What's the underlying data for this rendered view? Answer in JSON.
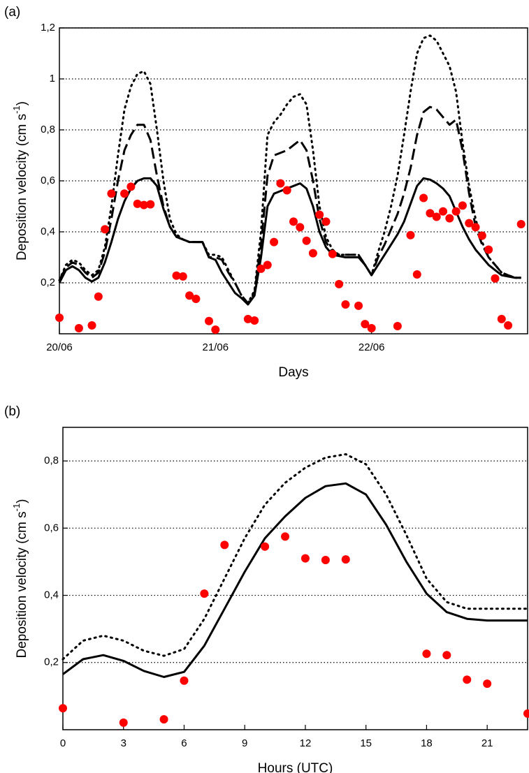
{
  "chart_data": [
    {
      "type": "line",
      "label": "(a)",
      "xlabel": "Days",
      "ylabel": [
        "Deposition velocity (cm s",
        "-1",
        ")"
      ],
      "x": [
        0,
        1,
        2,
        3,
        4,
        5,
        6,
        7,
        8,
        9,
        10,
        11,
        12,
        13,
        14,
        15,
        16,
        17,
        18,
        19,
        20,
        21,
        22,
        23,
        24,
        25,
        26,
        27,
        28,
        29,
        30,
        31,
        32,
        33,
        34,
        35,
        36,
        37,
        38,
        39,
        40,
        41,
        42,
        43,
        44,
        45,
        46,
        47,
        48,
        49,
        50,
        51,
        52,
        53,
        54,
        55,
        56,
        57,
        58,
        59,
        60,
        61,
        62,
        63,
        64,
        65,
        66,
        67,
        68,
        69,
        70,
        71
      ],
      "xlim": [
        0,
        72
      ],
      "xticks": [
        {
          "value": 0,
          "label": "20/06"
        },
        {
          "value": 24,
          "label": "21/06"
        },
        {
          "value": 48,
          "label": "22/06"
        }
      ],
      "ylim": [
        0,
        1.2
      ],
      "yticks": [
        {
          "value": 0.2,
          "label": "0,2"
        },
        {
          "value": 0.4,
          "label": "0,4"
        },
        {
          "value": 0.6,
          "label": "0,6"
        },
        {
          "value": 0.8,
          "label": "0,8"
        },
        1,
        {
          "value": 1.2,
          "label": "1,2"
        }
      ],
      "grid": true,
      "series": [
        {
          "style": "dotted",
          "color": "#000000",
          "values": [
            0.21,
            0.27,
            0.29,
            0.28,
            0.25,
            0.23,
            0.25,
            0.34,
            0.5,
            0.7,
            0.88,
            0.97,
            1.02,
            1.03,
            0.98,
            0.8,
            0.6,
            0.45,
            0.39,
            0.37,
            0.36,
            0.36,
            0.36,
            0.31,
            0.31,
            0.3,
            0.25,
            0.2,
            0.15,
            0.12,
            0.17,
            0.4,
            0.78,
            0.83,
            0.86,
            0.9,
            0.93,
            0.94,
            0.9,
            0.72,
            0.5,
            0.38,
            0.33,
            0.31,
            0.31,
            0.31,
            0.31,
            0.27,
            0.23,
            0.32,
            0.4,
            0.5,
            0.62,
            0.78,
            0.95,
            1.1,
            1.16,
            1.17,
            1.15,
            1.1,
            1.05,
            0.95,
            0.75,
            0.58,
            0.45,
            0.36,
            0.3,
            0.27,
            0.24,
            0.23,
            0.22,
            0.22
          ]
        },
        {
          "style": "dashed",
          "color": "#000000",
          "values": [
            0.21,
            0.26,
            0.28,
            0.27,
            0.24,
            0.22,
            0.24,
            0.32,
            0.45,
            0.6,
            0.72,
            0.78,
            0.82,
            0.82,
            0.76,
            0.62,
            0.5,
            0.42,
            0.38,
            0.37,
            0.36,
            0.36,
            0.36,
            0.3,
            0.3,
            0.29,
            0.24,
            0.2,
            0.15,
            0.12,
            0.16,
            0.35,
            0.62,
            0.7,
            0.71,
            0.72,
            0.74,
            0.76,
            0.72,
            0.6,
            0.45,
            0.36,
            0.32,
            0.31,
            0.31,
            0.31,
            0.31,
            0.27,
            0.23,
            0.3,
            0.35,
            0.41,
            0.47,
            0.55,
            0.65,
            0.78,
            0.87,
            0.89,
            0.88,
            0.85,
            0.82,
            0.84,
            0.72,
            0.55,
            0.42,
            0.35,
            0.3,
            0.27,
            0.24,
            0.23,
            0.22,
            0.22
          ]
        },
        {
          "style": "solid",
          "color": "#000000",
          "values": [
            0.2,
            0.25,
            0.265,
            0.25,
            0.22,
            0.205,
            0.22,
            0.28,
            0.36,
            0.45,
            0.52,
            0.57,
            0.6,
            0.61,
            0.61,
            0.58,
            0.49,
            0.42,
            0.38,
            0.37,
            0.36,
            0.36,
            0.36,
            0.3,
            0.29,
            0.24,
            0.2,
            0.16,
            0.14,
            0.115,
            0.15,
            0.3,
            0.5,
            0.55,
            0.56,
            0.57,
            0.58,
            0.59,
            0.57,
            0.5,
            0.4,
            0.34,
            0.31,
            0.305,
            0.3,
            0.3,
            0.3,
            0.27,
            0.23,
            0.27,
            0.31,
            0.35,
            0.39,
            0.44,
            0.51,
            0.58,
            0.61,
            0.605,
            0.59,
            0.57,
            0.54,
            0.48,
            0.42,
            0.37,
            0.33,
            0.3,
            0.27,
            0.25,
            0.23,
            0.225,
            0.22,
            0.22
          ]
        },
        {
          "style": "dots",
          "color": "#ff0000",
          "values": [
            0.063,
            null,
            null,
            0.022,
            null,
            0.033,
            0.146,
            0.41,
            0.55,
            null,
            0.55,
            0.577,
            0.51,
            0.505,
            0.508,
            null,
            null,
            null,
            0.228,
            0.225,
            0.15,
            0.137,
            null,
            0.05,
            0.016,
            null,
            null,
            null,
            null,
            0.058,
            0.052,
            0.255,
            0.27,
            0.36,
            0.59,
            0.563,
            0.44,
            0.418,
            0.365,
            0.316,
            0.467,
            0.44,
            0.313,
            0.195,
            0.115,
            null,
            0.11,
            0.038,
            0.022,
            null,
            null,
            null,
            0.03,
            null,
            0.387,
            0.233,
            0.533,
            0.473,
            0.459,
            0.48,
            0.453,
            0.48,
            0.503,
            0.434,
            0.418,
            0.385,
            0.33,
            0.217,
            0.058,
            0.033,
            null,
            0.43
          ]
        }
      ]
    },
    {
      "type": "line",
      "label": "(b)",
      "xlabel": "Hours (UTC)",
      "ylabel": [
        "Deposition velocity (cm s",
        "-1",
        ")"
      ],
      "x": [
        0,
        1,
        2,
        3,
        4,
        5,
        6,
        7,
        8,
        9,
        10,
        11,
        12,
        13,
        14,
        15,
        16,
        17,
        18,
        19,
        20,
        21,
        22,
        23
      ],
      "xlim": [
        0,
        23
      ],
      "xticks": [
        0,
        3,
        6,
        9,
        12,
        15,
        18,
        21
      ],
      "ylim": [
        0,
        0.9
      ],
      "yticks": [
        {
          "value": 0.2,
          "label": "0,2"
        },
        {
          "value": 0.4,
          "label": "0,4"
        },
        {
          "value": 0.6,
          "label": "0,6"
        },
        {
          "value": 0.8,
          "label": "0,8"
        }
      ],
      "grid": true,
      "series": [
        {
          "style": "dotted",
          "color": "#000000",
          "values": [
            0.21,
            0.265,
            0.28,
            0.265,
            0.235,
            0.22,
            0.24,
            0.33,
            0.45,
            0.57,
            0.67,
            0.735,
            0.78,
            0.81,
            0.82,
            0.79,
            0.7,
            0.58,
            0.45,
            0.38,
            0.36,
            0.36,
            0.36,
            0.36
          ]
        },
        {
          "style": "solid",
          "color": "#000000",
          "values": [
            0.165,
            0.21,
            0.222,
            0.205,
            0.175,
            0.157,
            0.172,
            0.25,
            0.36,
            0.47,
            0.57,
            0.635,
            0.69,
            0.725,
            0.733,
            0.7,
            0.61,
            0.5,
            0.405,
            0.35,
            0.33,
            0.325,
            0.325,
            0.325
          ]
        },
        {
          "style": "dots",
          "color": "#ff0000",
          "values": [
            0.064,
            null,
            null,
            0.021,
            null,
            0.031,
            0.146,
            0.405,
            0.55,
            null,
            0.545,
            0.575,
            0.51,
            0.505,
            0.507,
            null,
            null,
            null,
            0.226,
            0.222,
            0.149,
            0.137,
            null,
            0.048
          ]
        }
      ]
    }
  ]
}
